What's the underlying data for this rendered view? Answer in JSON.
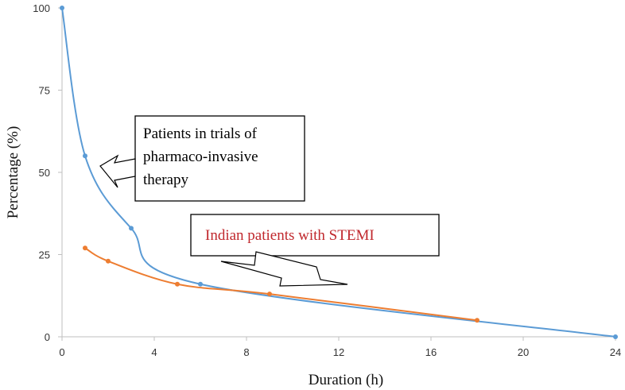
{
  "chart_data": {
    "type": "line",
    "xlabel": "Duration (h)",
    "ylabel": "Percentage  (%)",
    "xlim": [
      0,
      24
    ],
    "ylim": [
      0,
      100
    ],
    "x_ticks": [
      0,
      4,
      8,
      12,
      16,
      20,
      24
    ],
    "y_ticks": [
      0,
      25,
      50,
      75,
      100
    ],
    "grid": false,
    "series": [
      {
        "color": "#5b9bd5",
        "points": [
          [
            0,
            100
          ],
          [
            1,
            55
          ],
          [
            3,
            33
          ],
          [
            6,
            16
          ],
          [
            24,
            0
          ]
        ]
      },
      {
        "color": "#ed7d31",
        "points": [
          [
            1,
            27
          ],
          [
            2,
            23
          ],
          [
            5,
            16
          ],
          [
            9,
            13
          ],
          [
            18,
            5
          ]
        ]
      }
    ],
    "annotations": [
      {
        "lines": [
          "Patients in trials of",
          "pharmaco-invasive",
          "therapy"
        ],
        "color": "#000000",
        "boxed": true
      },
      {
        "lines": [
          "Indian patients with STEMI"
        ],
        "color": "#c0282d",
        "boxed": true
      }
    ]
  }
}
